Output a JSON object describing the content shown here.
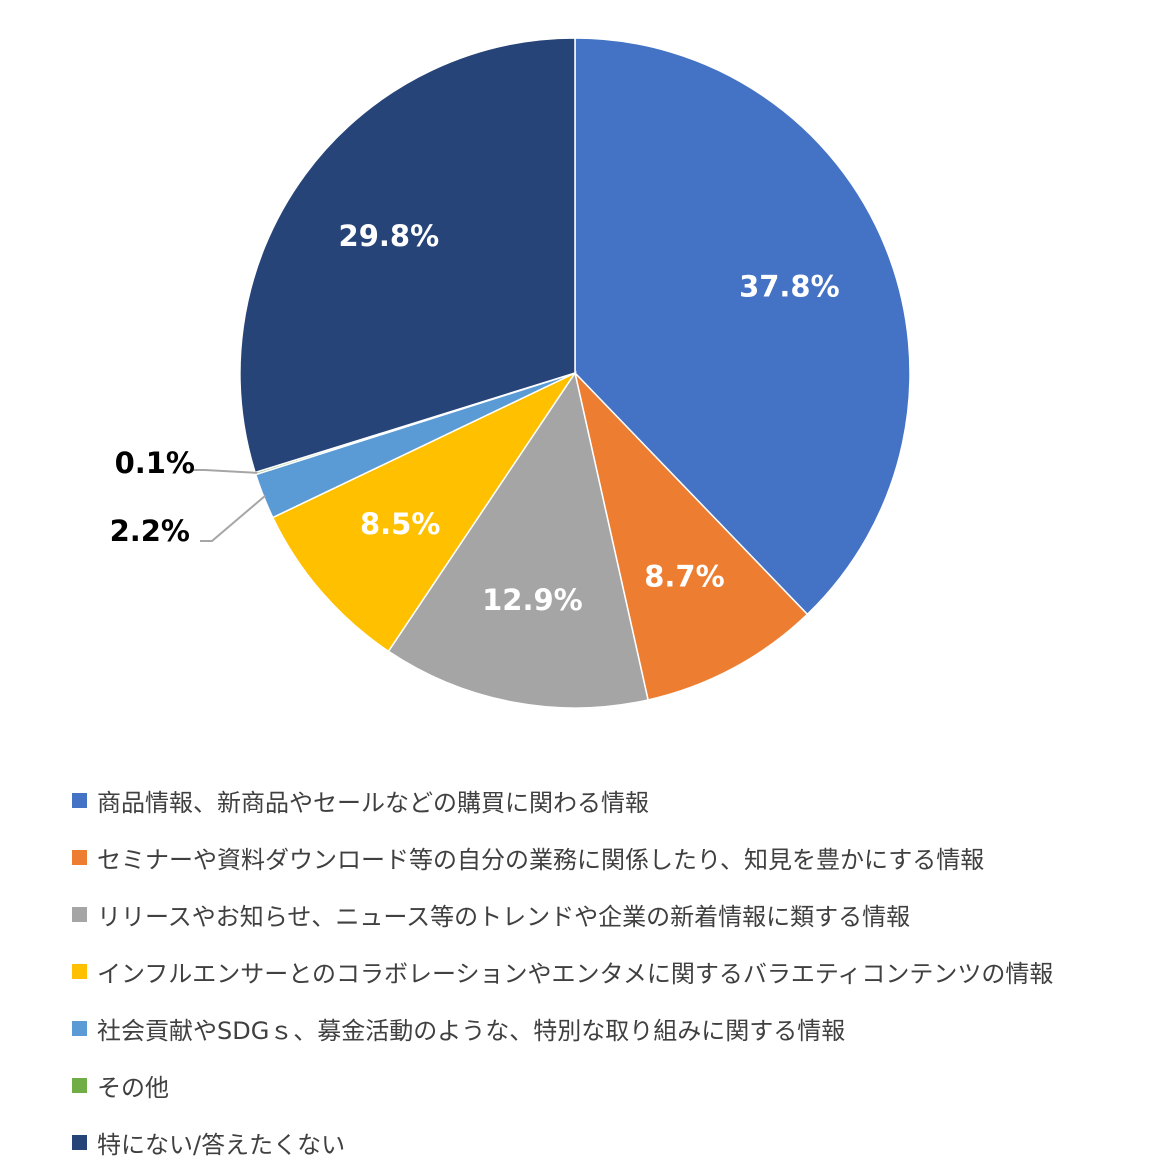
{
  "chart_data": {
    "type": "pie",
    "start": "12 o'clock",
    "direction": "clockwise",
    "legend_position": "bottom",
    "slices": [
      {
        "label": "商品情報、新商品やセールなどの購買に関わる情報",
        "value": 37.8,
        "value_label": "37.8%",
        "color": "#4472C4",
        "label_placement": "inside"
      },
      {
        "label": "セミナーや資料ダウンロード等の自分の業務に関係したり、知見を豊かにする情報",
        "value": 8.7,
        "value_label": "8.7%",
        "color": "#ED7D31",
        "label_placement": "inside"
      },
      {
        "label": "リリースやお知らせ、ニュース等のトレンドや企業の新着情報に類する情報",
        "value": 12.9,
        "value_label": "12.9%",
        "color": "#A5A5A5",
        "label_placement": "inside"
      },
      {
        "label": "インフルエンサーとのコラボレーションやエンタメに関するバラエティコンテンツの情報",
        "value": 8.5,
        "value_label": "8.5%",
        "color": "#FFC000",
        "label_placement": "inside"
      },
      {
        "label": "社会貢献やSDGｓ、募金活動のような、特別な取り組みに関する情報",
        "value": 2.2,
        "value_label": "2.2%",
        "color": "#5B9BD5",
        "label_placement": "outside"
      },
      {
        "label": "その他",
        "value": 0.1,
        "value_label": "0.1%",
        "color": "#70AD47",
        "label_placement": "outside"
      },
      {
        "label": "特にない/答えたくない",
        "value": 29.8,
        "value_label": "29.8%",
        "color": "#264478",
        "label_placement": "inside"
      }
    ]
  }
}
